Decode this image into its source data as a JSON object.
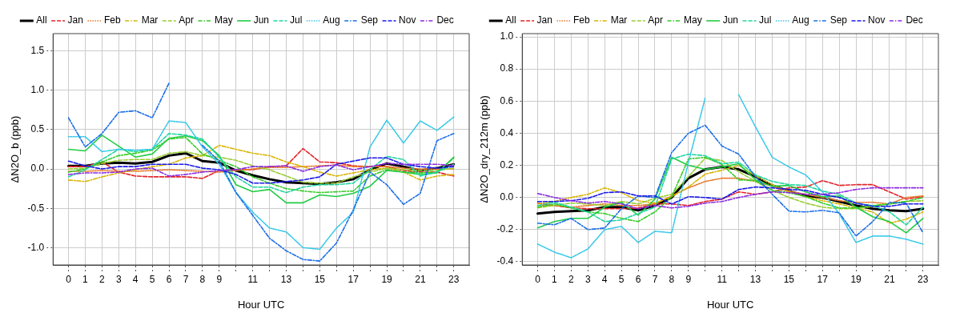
{
  "chart_data": [
    {
      "type": "line",
      "xlabel": "Hour UTC",
      "ylabel": "ΔN2O_b (ppb)",
      "x": [
        0,
        1,
        2,
        3,
        4,
        5,
        6,
        7,
        8,
        9,
        10,
        11,
        12,
        13,
        14,
        15,
        16,
        17,
        18,
        19,
        20,
        21,
        22,
        23
      ],
      "xlim": [
        -0.92,
        23.92
      ],
      "xticks": [
        0,
        1,
        2,
        3,
        4,
        5,
        6,
        7,
        8,
        9,
        {
          "value": 10,
          "label": null
        },
        11,
        {
          "value": 12,
          "label": null
        },
        13,
        {
          "value": 14,
          "label": null
        },
        15,
        {
          "value": 16,
          "label": null
        },
        17,
        {
          "value": 18,
          "label": null
        },
        19,
        {
          "value": 20,
          "label": null
        },
        21,
        {
          "value": 22,
          "label": null
        },
        23
      ],
      "ylim": [
        -1.22,
        1.72
      ],
      "yticks": [
        {
          "value": -1,
          "label": "-1.0"
        },
        -0.5,
        {
          "value": 0,
          "label": "0.0"
        },
        0.5,
        {
          "value": 1,
          "label": "1.0"
        },
        1.5
      ],
      "grid": true,
      "legend": "top",
      "marker": "none",
      "series": [
        {
          "name": "All",
          "color": "#000000",
          "line_style": "solid",
          "values": [
            0.04,
            0.04,
            0.07,
            0.08,
            0.07,
            0.09,
            0.17,
            0.2,
            0.1,
            0.08,
            -0.02,
            -0.08,
            -0.13,
            -0.17,
            -0.18,
            -0.19,
            -0.17,
            -0.13,
            -0.01,
            0.07,
            0.03,
            -0.02,
            0.01,
            0.06
          ]
        },
        {
          "name": "Jan",
          "color": "#e3242b",
          "line_style": "dashed",
          "values": [
            0.03,
            0.03,
            0.09,
            -0.04,
            -0.09,
            -0.1,
            -0.1,
            -0.1,
            -0.12,
            -0.02,
            -0.01,
            -0.01,
            0.03,
            0.04,
            0.26,
            0.09,
            0.08,
            0.04,
            0.03,
            0.03,
            -0.02,
            -0.04,
            -0.04,
            -0.09
          ]
        },
        {
          "name": "Feb",
          "color": "#e8782a",
          "line_style": "dotted",
          "values": [
            -0.03,
            -0.03,
            -0.02,
            -0.03,
            -0.03,
            -0.02,
            -0.01,
            -0.02,
            -0.03,
            -0.04,
            -0.02,
            0,
            0.02,
            0.02,
            0.03,
            0.04,
            0.05,
            0.03,
            0.03,
            0.03,
            0.01,
            0,
            0,
            0
          ]
        },
        {
          "name": "Mar",
          "color": "#d8b400",
          "line_style": "dashdot",
          "values": [
            -0.14,
            -0.16,
            -0.1,
            -0.05,
            -0.01,
            0.03,
            0.06,
            0.14,
            0.17,
            0.3,
            0.25,
            0.2,
            0.17,
            0.09,
            0.03,
            -0.04,
            -0.09,
            -0.05,
            -0.01,
            0.01,
            -0.04,
            -0.14,
            -0.09,
            -0.07
          ]
        },
        {
          "name": "Apr",
          "color": "#9acd32",
          "line_style": "dashed",
          "values": [
            0,
            0.01,
            0.07,
            0.11,
            0.12,
            0.12,
            0.2,
            0.22,
            0.17,
            0.15,
            0.11,
            0.04,
            -0.01,
            -0.09,
            -0.17,
            -0.18,
            -0.18,
            -0.1,
            -0.04,
            0.01,
            -0.01,
            -0.02,
            -0.02,
            0.01
          ]
        },
        {
          "name": "May",
          "color": "#33cc22",
          "line_style": "dashdot",
          "values": [
            -0.04,
            0,
            0.09,
            0.17,
            0.2,
            0.24,
            0.38,
            0.4,
            0.19,
            0.11,
            0.03,
            -0.1,
            -0.18,
            -0.25,
            -0.28,
            -0.3,
            -0.29,
            -0.28,
            -0.09,
            -0.01,
            -0.04,
            -0.05,
            -0.04,
            0.14
          ]
        },
        {
          "name": "Jun",
          "color": "#22cc44",
          "line_style": "solid",
          "values": [
            0.25,
            0.23,
            0.43,
            0.29,
            0.15,
            0.19,
            0.39,
            0.42,
            0.36,
            0.17,
            -0.2,
            -0.29,
            -0.26,
            -0.43,
            -0.43,
            -0.33,
            -0.35,
            -0.31,
            -0.22,
            -0.02,
            -0.04,
            -0.07,
            -0.05,
            0.15
          ]
        },
        {
          "name": "Jul",
          "color": "#22d4a0",
          "line_style": "dashed",
          "values": [
            -0.1,
            -0.01,
            0.12,
            0.25,
            0.22,
            0.25,
            0.45,
            0.43,
            0.38,
            0.15,
            -0.1,
            -0.23,
            -0.23,
            -0.3,
            -0.23,
            -0.2,
            -0.2,
            -0.18,
            -0.01,
            0.16,
            0.12,
            -0.09,
            -0.04,
            0.06
          ]
        },
        {
          "name": "Aug",
          "color": "#33c8e8",
          "line_style": "dotted",
          "values": [
            0.41,
            0.41,
            0.22,
            0.25,
            0.24,
            0.25,
            0.61,
            0.59,
            0.28,
            0.06,
            -0.3,
            -0.55,
            -0.75,
            -0.8,
            -1.0,
            -1.02,
            -0.75,
            -0.55,
            0.28,
            0.62,
            0.33,
            0.61,
            0.49,
            0.66
          ]
        },
        {
          "name": "Sep",
          "color": "#1a6ee8",
          "line_style": "dashdot",
          "values": [
            0.65,
            0.28,
            0.45,
            0.72,
            0.74,
            0.65,
            1.09,
            null,
            0.3,
            0.1,
            -0.3,
            -0.59,
            -0.88,
            -1.04,
            -1.15,
            -1.17,
            -0.94,
            -0.52,
            -0.04,
            -0.2,
            -0.45,
            -0.31,
            0.36,
            0.45
          ]
        },
        {
          "name": "Nov",
          "color": "#1a1ae8",
          "line_style": "dashed",
          "values": [
            0.1,
            0.04,
            0,
            0.03,
            0.03,
            0.06,
            0.06,
            0.06,
            0.01,
            -0.01,
            -0.07,
            -0.18,
            -0.18,
            -0.16,
            -0.14,
            -0.1,
            0.06,
            0.1,
            0.14,
            0.14,
            0.06,
            0.03,
            0.01,
            0.03
          ]
        },
        {
          "name": "Dec",
          "color": "#8a2be2",
          "line_style": "dashdot",
          "values": [
            -0.07,
            -0.05,
            -0.05,
            -0.04,
            0,
            0.01,
            -0.09,
            -0.07,
            -0.04,
            -0.02,
            -0.01,
            0.03,
            0.03,
            0.04,
            -0.03,
            0.03,
            0.05,
            -0.01,
            0.03,
            0.07,
            0.06,
            0.06,
            0.06,
            0.04
          ]
        }
      ]
    },
    {
      "type": "line",
      "xlabel": "Hour UTC",
      "ylabel": "ΔN2O_dry_212m (ppb)",
      "x": [
        0,
        1,
        2,
        3,
        4,
        5,
        6,
        7,
        8,
        9,
        10,
        11,
        12,
        13,
        14,
        15,
        16,
        17,
        18,
        19,
        20,
        21,
        22,
        23
      ],
      "xlim": [
        -0.92,
        23.92
      ],
      "xticks": [
        0,
        1,
        2,
        3,
        4,
        5,
        6,
        7,
        8,
        9,
        {
          "value": 10,
          "label": null
        },
        11,
        {
          "value": 12,
          "label": null
        },
        13,
        {
          "value": 14,
          "label": null
        },
        15,
        {
          "value": 16,
          "label": null
        },
        17,
        {
          "value": 18,
          "label": null
        },
        19,
        {
          "value": 20,
          "label": null
        },
        21,
        {
          "value": 22,
          "label": null
        },
        23
      ],
      "ylim": [
        -0.42,
        1.02
      ],
      "yticks": [
        -0.4,
        -0.2,
        {
          "value": 0,
          "label": "0.0"
        },
        0.2,
        0.4,
        0.6,
        0.8,
        {
          "value": 1,
          "label": "1.0"
        }
      ],
      "grid": true,
      "legend": "top",
      "marker": "none",
      "series": [
        {
          "name": "All",
          "color": "#000000",
          "line_style": "solid",
          "values": [
            -0.1,
            -0.09,
            -0.085,
            -0.08,
            -0.06,
            -0.06,
            -0.08,
            -0.05,
            0,
            0.12,
            0.175,
            0.19,
            0.175,
            0.13,
            0.075,
            0.04,
            0.01,
            0,
            -0.025,
            -0.05,
            -0.07,
            -0.08,
            -0.085,
            -0.07
          ]
        },
        {
          "name": "Jan",
          "color": "#e3242b",
          "line_style": "dashed",
          "values": [
            -0.035,
            -0.05,
            -0.065,
            -0.07,
            -0.07,
            -0.07,
            -0.065,
            -0.04,
            -0.04,
            -0.05,
            -0.025,
            -0.01,
            0.035,
            0.02,
            0.035,
            0.06,
            0.065,
            0.105,
            0.075,
            0.08,
            0.08,
            0.035,
            -0.01,
            0.005
          ]
        },
        {
          "name": "Feb",
          "color": "#e8782a",
          "line_style": "dotted",
          "values": [
            -0.05,
            -0.05,
            -0.06,
            -0.05,
            -0.04,
            -0.05,
            -0.05,
            -0.04,
            0.01,
            0.06,
            0.1,
            0.12,
            0.12,
            0.1,
            0.07,
            0.04,
            0.02,
            0,
            -0.02,
            -0.03,
            -0.03,
            -0.04,
            0,
            0.01
          ]
        },
        {
          "name": "Mar",
          "color": "#d8b400",
          "line_style": "dashdot",
          "values": [
            -0.04,
            -0.025,
            0,
            0.02,
            0.06,
            0.03,
            -0.02,
            -0.035,
            0.005,
            0.065,
            0.145,
            0.17,
            0.2,
            0.135,
            0.08,
            0.035,
            0.005,
            -0.02,
            -0.04,
            -0.065,
            -0.09,
            -0.16,
            -0.135,
            -0.09
          ]
        },
        {
          "name": "Apr",
          "color": "#9acd32",
          "line_style": "dashed",
          "values": [
            -0.065,
            -0.05,
            -0.035,
            -0.04,
            -0.05,
            -0.025,
            -0.04,
            -0.005,
            0.02,
            0.13,
            0.245,
            0.23,
            0.16,
            0.1,
            0.045,
            0,
            -0.035,
            -0.06,
            -0.07,
            -0.07,
            -0.055,
            -0.04,
            -0.025,
            -0.02
          ]
        },
        {
          "name": "May",
          "color": "#33cc22",
          "line_style": "dashdot",
          "values": [
            -0.06,
            -0.04,
            -0.065,
            -0.09,
            -0.1,
            -0.13,
            -0.15,
            -0.09,
            0.005,
            0.24,
            0.25,
            0.205,
            0.11,
            0.105,
            0.045,
            0.03,
            0.005,
            -0.035,
            -0.065,
            -0.065,
            -0.05,
            -0.04,
            -0.025,
            0
          ]
        },
        {
          "name": "Jun",
          "color": "#22cc44",
          "line_style": "solid",
          "values": [
            -0.19,
            -0.15,
            -0.13,
            -0.13,
            -0.06,
            -0.03,
            -0.11,
            -0.01,
            0.25,
            0.2,
            0.175,
            0.19,
            0.21,
            0.11,
            0.07,
            0.075,
            0.035,
            0.005,
            0.01,
            -0.06,
            -0.12,
            -0.15,
            -0.22,
            -0.13
          ]
        },
        {
          "name": "Jul",
          "color": "#22d4a0",
          "line_style": "dashed",
          "values": [
            -0.05,
            -0.03,
            -0.06,
            -0.09,
            -0.15,
            -0.14,
            -0.1,
            -0.06,
            0.24,
            0.27,
            0.26,
            0.21,
            0.22,
            0.14,
            0.1,
            0.08,
            0.075,
            0.04,
            0.02,
            -0.035,
            -0.05,
            -0.09,
            -0.17,
            -0.06
          ]
        },
        {
          "name": "Aug",
          "color": "#33c8e8",
          "line_style": "dotted",
          "values": [
            -0.29,
            -0.34,
            -0.375,
            -0.32,
            -0.2,
            -0.18,
            -0.28,
            -0.21,
            -0.22,
            0.22,
            0.62,
            null,
            0.64,
            0.44,
            0.25,
            0.19,
            0.14,
            0.035,
            -0.1,
            -0.28,
            -0.24,
            -0.24,
            -0.26,
            -0.29
          ]
        },
        {
          "name": "Sep",
          "color": "#1a6ee8",
          "line_style": "dashdot",
          "values": [
            -0.16,
            -0.17,
            -0.13,
            -0.2,
            -0.19,
            -0.07,
            0.01,
            0,
            0.28,
            0.4,
            0.45,
            0.32,
            0.27,
            0.13,
            0.02,
            -0.085,
            -0.09,
            -0.08,
            -0.095,
            -0.24,
            -0.15,
            -0.03,
            -0.035,
            -0.22
          ]
        },
        {
          "name": "Nov",
          "color": "#1a1ae8",
          "line_style": "dashed",
          "values": [
            -0.025,
            -0.025,
            -0.02,
            -0.005,
            0.03,
            0.035,
            0.01,
            0.01,
            -0.04,
            0.005,
            0,
            -0.01,
            0.05,
            0.065,
            0.06,
            0.05,
            0.045,
            0.02,
            0,
            -0.035,
            -0.055,
            -0.055,
            -0.04,
            -0.04
          ]
        },
        {
          "name": "Dec",
          "color": "#8a2be2",
          "line_style": "dashdot",
          "values": [
            0.025,
            0,
            -0.02,
            -0.035,
            -0.025,
            -0.04,
            -0.07,
            -0.05,
            -0.065,
            -0.055,
            -0.035,
            -0.025,
            0,
            0.02,
            0.035,
            0.03,
            0.02,
            0.02,
            0.03,
            0.05,
            0.06,
            0.06,
            0.06,
            0.06
          ]
        }
      ]
    }
  ]
}
